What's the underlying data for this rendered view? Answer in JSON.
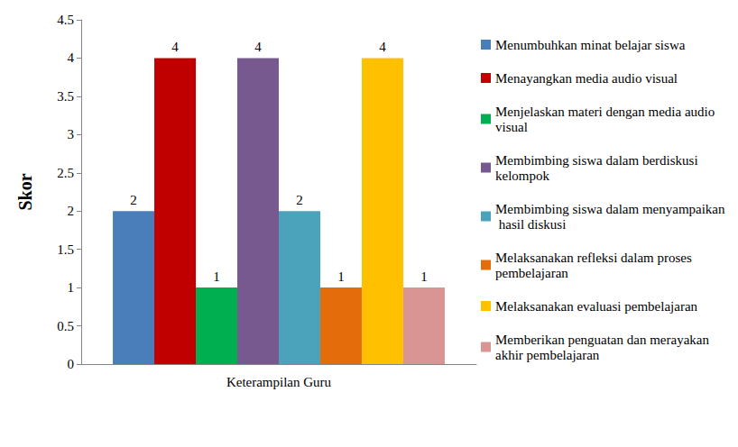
{
  "chart_data": {
    "type": "bar",
    "categories": [
      "Keterampilan Guru"
    ],
    "ylabel": "Skor",
    "ylim": [
      0,
      4.5
    ],
    "yticks": [
      0,
      0.5,
      1,
      1.5,
      2,
      2.5,
      3,
      3.5,
      4,
      4.5
    ],
    "grid": false,
    "legend": "right",
    "data_labels": true,
    "series": [
      {
        "name": "Menumbuhkan minat belajar siswa",
        "color": "#4a7ebb",
        "values": [
          2
        ]
      },
      {
        "name": "Menayangkan media audio visual",
        "color": "#c00000",
        "values": [
          4
        ]
      },
      {
        "name": "Menjelaskan materi dengan media audio visual",
        "color": "#00b050",
        "values": [
          1
        ]
      },
      {
        "name": "Membimbing siswa dalam berdiskusi kelompok",
        "color": "#77598f",
        "values": [
          4
        ]
      },
      {
        "name": "Membimbing siswa dalam menyampaikan hasil diskusi",
        "color": "#4aa3bb",
        "values": [
          2
        ]
      },
      {
        "name": "Melaksanakan refleksi dalam proses pembelajaran",
        "color": "#e46c0a",
        "values": [
          1
        ]
      },
      {
        "name": "Melaksanakan evaluasi pembelajaran",
        "color": "#ffc000",
        "values": [
          4
        ]
      },
      {
        "name": "Memberikan penguatan dan merayakan akhir pembelajaran",
        "color": "#d99594",
        "values": [
          1
        ]
      }
    ]
  }
}
